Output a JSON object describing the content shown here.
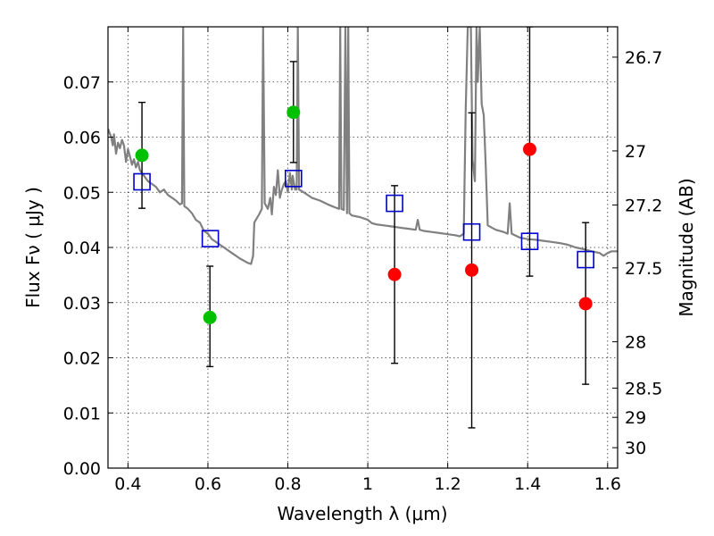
{
  "chart_data": {
    "type": "scatter",
    "title": "",
    "xlabel": "Wavelength  λ (μm)",
    "ylabel": "Flux  Fν  ( μJy )",
    "y2label": "Magnitude (AB)",
    "xlim": [
      0.35,
      1.625
    ],
    "ylim": [
      0.0,
      0.08
    ],
    "grid": true,
    "x_ticks": [
      0.4,
      0.6,
      0.8,
      1.0,
      1.2,
      1.4,
      1.6
    ],
    "x_tick_labels": [
      "0.4",
      "0.6",
      "0.8",
      "1",
      "1.2",
      "1.4",
      "1.6"
    ],
    "y_ticks": [
      0.0,
      0.01,
      0.02,
      0.03,
      0.04,
      0.05,
      0.06,
      0.07
    ],
    "y_tick_labels": [
      "0.00",
      "0.01",
      "0.02",
      "0.03",
      "0.04",
      "0.05",
      "0.06",
      "0.07"
    ],
    "mag_ticks": [
      {
        "flux": 0.0745,
        "label": "26.7"
      },
      {
        "flux": 0.0575,
        "label": "27"
      },
      {
        "flux": 0.0477,
        "label": "27.2"
      },
      {
        "flux": 0.0363,
        "label": "27.5"
      },
      {
        "flux": 0.0229,
        "label": "28"
      },
      {
        "flux": 0.0145,
        "label": "28.5"
      },
      {
        "flux": 0.0092,
        "label": "29"
      },
      {
        "flux": 0.0037,
        "label": "30"
      }
    ],
    "series": [
      {
        "color": "#00c000",
        "marker": "circle",
        "points": [
          {
            "x": 0.435,
            "y": 0.0567,
            "lo": 0.0471,
            "hi": 0.0663
          },
          {
            "x": 0.605,
            "y": 0.0273,
            "lo": 0.0184,
            "hi": 0.0366
          },
          {
            "x": 0.814,
            "y": 0.0645,
            "lo": 0.0554,
            "hi": 0.0737
          }
        ]
      },
      {
        "color": "#ff0000",
        "marker": "circle",
        "points": [
          {
            "x": 1.067,
            "y": 0.0351,
            "lo": 0.019,
            "hi": 0.0512
          },
          {
            "x": 1.26,
            "y": 0.0359,
            "lo": 0.0073,
            "hi": 0.0644
          },
          {
            "x": 1.405,
            "y": 0.0578,
            "lo": 0.0348,
            "hi": 0.08
          },
          {
            "x": 1.545,
            "y": 0.0298,
            "lo": 0.0152,
            "hi": 0.0445
          }
        ]
      },
      {
        "color": "#0000cc",
        "marker": "open-square",
        "points": [
          {
            "x": 0.435,
            "y": 0.0519
          },
          {
            "x": 0.606,
            "y": 0.0416
          },
          {
            "x": 0.814,
            "y": 0.0525
          },
          {
            "x": 1.067,
            "y": 0.048
          },
          {
            "x": 1.26,
            "y": 0.0428
          },
          {
            "x": 1.405,
            "y": 0.0411
          },
          {
            "x": 1.545,
            "y": 0.0378
          }
        ]
      }
    ],
    "model_spectrum": {
      "color": "#808080",
      "points": [
        [
          0.35,
          0.0615
        ],
        [
          0.358,
          0.06
        ],
        [
          0.362,
          0.0585
        ],
        [
          0.365,
          0.0605
        ],
        [
          0.37,
          0.057
        ],
        [
          0.375,
          0.059
        ],
        [
          0.38,
          0.058
        ],
        [
          0.385,
          0.0595
        ],
        [
          0.39,
          0.0585
        ],
        [
          0.395,
          0.0555
        ],
        [
          0.4,
          0.0578
        ],
        [
          0.405,
          0.0565
        ],
        [
          0.41,
          0.055
        ],
        [
          0.415,
          0.056
        ],
        [
          0.42,
          0.0545
        ],
        [
          0.425,
          0.0555
        ],
        [
          0.43,
          0.054
        ],
        [
          0.44,
          0.053
        ],
        [
          0.45,
          0.052
        ],
        [
          0.46,
          0.0515
        ],
        [
          0.47,
          0.051
        ],
        [
          0.48,
          0.05
        ],
        [
          0.49,
          0.0505
        ],
        [
          0.5,
          0.0495
        ],
        [
          0.51,
          0.049
        ],
        [
          0.52,
          0.0485
        ],
        [
          0.53,
          0.0478
        ],
        [
          0.535,
          0.048
        ],
        [
          0.538,
          0.08
        ],
        [
          0.541,
          0.0475
        ],
        [
          0.55,
          0.047
        ],
        [
          0.56,
          0.0462
        ],
        [
          0.57,
          0.045
        ],
        [
          0.58,
          0.0445
        ],
        [
          0.59,
          0.043
        ],
        [
          0.6,
          0.0425
        ],
        [
          0.61,
          0.0415
        ],
        [
          0.62,
          0.041
        ],
        [
          0.64,
          0.04
        ],
        [
          0.66,
          0.039
        ],
        [
          0.68,
          0.038
        ],
        [
          0.7,
          0.0372
        ],
        [
          0.708,
          0.037
        ],
        [
          0.713,
          0.0385
        ],
        [
          0.716,
          0.0445
        ],
        [
          0.72,
          0.045
        ],
        [
          0.728,
          0.046
        ],
        [
          0.735,
          0.047
        ],
        [
          0.738,
          0.08
        ],
        [
          0.742,
          0.048
        ],
        [
          0.75,
          0.047
        ],
        [
          0.756,
          0.049
        ],
        [
          0.76,
          0.046
        ],
        [
          0.765,
          0.051
        ],
        [
          0.77,
          0.0495
        ],
        [
          0.775,
          0.054
        ],
        [
          0.78,
          0.049
        ],
        [
          0.785,
          0.0505
        ],
        [
          0.79,
          0.0515
        ],
        [
          0.795,
          0.052
        ],
        [
          0.8,
          0.05
        ],
        [
          0.805,
          0.0535
        ],
        [
          0.81,
          0.0505
        ],
        [
          0.812,
          0.053
        ],
        [
          0.818,
          0.0505
        ],
        [
          0.822,
          0.0505
        ],
        [
          0.825,
          0.08
        ],
        [
          0.828,
          0.0505
        ],
        [
          0.84,
          0.05
        ],
        [
          0.86,
          0.049
        ],
        [
          0.88,
          0.0485
        ],
        [
          0.9,
          0.0478
        ],
        [
          0.91,
          0.0475
        ],
        [
          0.92,
          0.0472
        ],
        [
          0.928,
          0.047
        ],
        [
          0.931,
          0.08
        ],
        [
          0.934,
          0.047
        ],
        [
          0.94,
          0.0468
        ],
        [
          0.944,
          0.08
        ],
        [
          0.948,
          0.0462
        ],
        [
          0.951,
          0.08
        ],
        [
          0.954,
          0.0462
        ],
        [
          0.96,
          0.0458
        ],
        [
          0.98,
          0.0455
        ],
        [
          1.0,
          0.045
        ],
        [
          1.01,
          0.0444
        ],
        [
          1.02,
          0.0442
        ],
        [
          1.04,
          0.044
        ],
        [
          1.06,
          0.0438
        ],
        [
          1.08,
          0.0436
        ],
        [
          1.1,
          0.0434
        ],
        [
          1.12,
          0.0432
        ],
        [
          1.125,
          0.045
        ],
        [
          1.13,
          0.0432
        ],
        [
          1.14,
          0.043
        ],
        [
          1.16,
          0.0428
        ],
        [
          1.18,
          0.0426
        ],
        [
          1.2,
          0.0424
        ],
        [
          1.22,
          0.0422
        ],
        [
          1.23,
          0.042
        ],
        [
          1.24,
          0.0425
        ],
        [
          1.245,
          0.065
        ],
        [
          1.25,
          0.08
        ],
        [
          1.258,
          0.08
        ],
        [
          1.262,
          0.056
        ],
        [
          1.268,
          0.052
        ],
        [
          1.272,
          0.08
        ],
        [
          1.275,
          0.07
        ],
        [
          1.28,
          0.08
        ],
        [
          1.285,
          0.066
        ],
        [
          1.29,
          0.064
        ],
        [
          1.295,
          0.055
        ],
        [
          1.3,
          0.044
        ],
        [
          1.32,
          0.0432
        ],
        [
          1.34,
          0.0428
        ],
        [
          1.35,
          0.0425
        ],
        [
          1.355,
          0.048
        ],
        [
          1.36,
          0.0425
        ],
        [
          1.38,
          0.0418
        ],
        [
          1.4,
          0.0415
        ],
        [
          1.42,
          0.0414
        ],
        [
          1.44,
          0.0412
        ],
        [
          1.46,
          0.041
        ],
        [
          1.48,
          0.0408
        ],
        [
          1.5,
          0.0405
        ],
        [
          1.52,
          0.04
        ],
        [
          1.54,
          0.0397
        ],
        [
          1.56,
          0.0393
        ],
        [
          1.58,
          0.039
        ],
        [
          1.59,
          0.0385
        ],
        [
          1.6,
          0.039
        ],
        [
          1.61,
          0.0393
        ],
        [
          1.625,
          0.0393
        ]
      ]
    }
  }
}
